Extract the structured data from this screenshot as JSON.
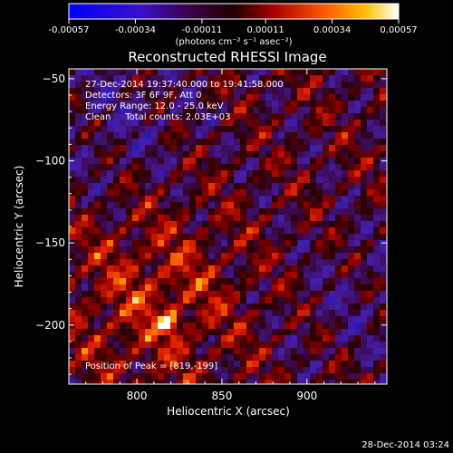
{
  "colorbar": {
    "ticks": [
      "-0.00057",
      "-0.00034",
      "-0.00011",
      "0.00011",
      "0.00034",
      "0.00057"
    ],
    "tick_values": [
      -0.00057,
      -0.00034,
      -0.00011,
      0.00011,
      0.00034,
      0.00057
    ],
    "range": [
      -0.00057,
      0.00057
    ],
    "unit_label": "(photons cm⁻² s⁻¹ asec⁻²)",
    "colors": [
      "#0000ff",
      "#4b0082",
      "#1a0000",
      "#a00000",
      "#ff4400",
      "#ffb000",
      "#ffffff"
    ]
  },
  "chart_data": {
    "type": "heatmap",
    "title": "Reconstructed RHESSI Image",
    "xlabel": "Heliocentric X (arcsec)",
    "ylabel": "Heliocentric Y (arcsec)",
    "xlim": [
      760,
      947
    ],
    "ylim": [
      -236,
      -44
    ],
    "x_ticks": [
      800,
      850,
      900
    ],
    "x_tick_labels": [
      "800",
      "850",
      "900"
    ],
    "y_ticks": [
      -50,
      -100,
      -150,
      -200
    ],
    "y_tick_labels": [
      "−50",
      "−100",
      "−150",
      "−200"
    ],
    "peak": [
      819,
      -199
    ],
    "annotations": [
      "27-Dec-2014 19:37:40.000 to 19:41:58.000",
      "Detectors: 3F 6F 9F, Att 0",
      "Energy Range: 12.0 - 25.0 keV",
      "Clean     Total counts: 2.03E+03"
    ],
    "peak_label": "Position of Peak = [819,-199]"
  },
  "footer": {
    "timestamp": "28-Dec-2014 03:24"
  }
}
